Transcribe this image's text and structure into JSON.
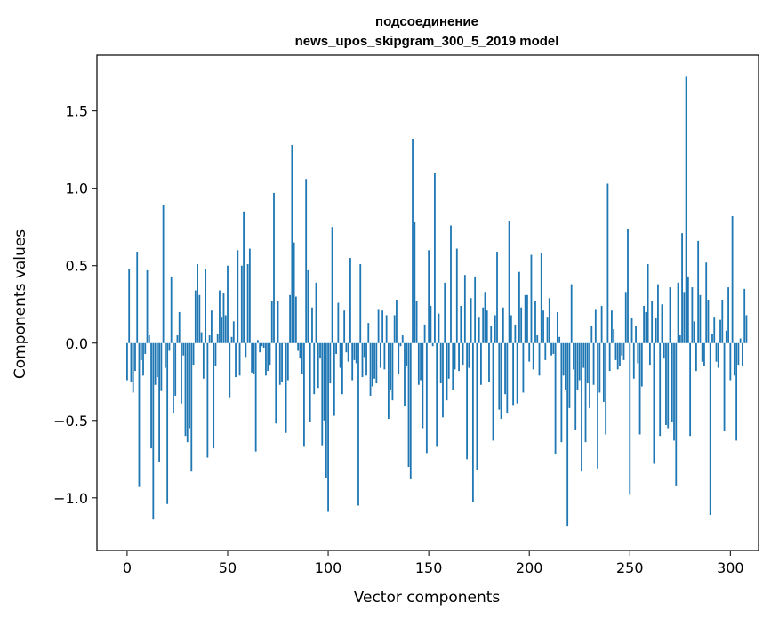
{
  "chart_data": {
    "type": "bar",
    "title_lines": [
      "подсоединение",
      "news_upos_skipgram_300_5_2019 model"
    ],
    "xlabel": "Vector components",
    "ylabel": "Components values",
    "xlim": [
      -15,
      314
    ],
    "ylim": [
      -1.34,
      1.86
    ],
    "xticks": [
      0,
      50,
      100,
      150,
      200,
      250,
      300
    ],
    "yticks": [
      -1.0,
      -0.5,
      0.0,
      0.5,
      1.0,
      1.5
    ],
    "ytick_labels": [
      "−1.0",
      "−0.5",
      "0.0",
      "0.5",
      "1.0",
      "1.5"
    ],
    "grid": false,
    "bar_color": "#1f77b4",
    "values": [
      -0.24,
      0.48,
      -0.25,
      -0.32,
      -0.18,
      0.59,
      -0.93,
      -0.11,
      -0.21,
      -0.07,
      0.47,
      0.05,
      -0.68,
      -1.14,
      -0.27,
      -0.22,
      -0.77,
      -0.31,
      0.89,
      -0.16,
      -1.04,
      -0.05,
      0.43,
      -0.45,
      -0.34,
      0.05,
      0.2,
      -0.39,
      -0.08,
      -0.6,
      -0.64,
      -0.55,
      -0.83,
      -0.14,
      0.34,
      0.51,
      0.31,
      0.07,
      -0.23,
      0.48,
      -0.74,
      0.05,
      0.21,
      -0.68,
      -0.15,
      0.06,
      0.34,
      0.17,
      0.32,
      0.18,
      0.5,
      -0.35,
      0.04,
      0.14,
      -0.22,
      0.6,
      -0.21,
      0.5,
      0.85,
      -0.09,
      0.51,
      0.61,
      -0.19,
      -0.2,
      -0.7,
      0.02,
      -0.06,
      -0.02,
      -0.03,
      -0.21,
      -0.18,
      -0.14,
      0.27,
      0.97,
      -0.52,
      0.27,
      -0.27,
      -0.25,
      0.0,
      -0.58,
      -0.24,
      0.31,
      1.28,
      0.65,
      0.3,
      -0.05,
      -0.1,
      -0.2,
      -0.67,
      1.06,
      0.47,
      -0.51,
      0.23,
      -0.33,
      0.39,
      -0.29,
      -0.1,
      -0.66,
      -0.5,
      -0.87,
      -1.09,
      -0.26,
      0.75,
      -0.47,
      -0.07,
      0.26,
      -0.16,
      -0.33,
      0.21,
      -0.06,
      -0.12,
      0.55,
      -0.24,
      -0.11,
      -0.13,
      -1.05,
      0.51,
      -0.22,
      -0.09,
      -0.21,
      0.13,
      -0.34,
      -0.28,
      -0.23,
      -0.26,
      0.22,
      -0.16,
      0.21,
      -0.17,
      0.18,
      -0.49,
      -0.3,
      -0.37,
      0.18,
      0.28,
      -0.2,
      -0.02,
      0.05,
      -0.41,
      -0.15,
      -0.8,
      -0.88,
      1.32,
      0.78,
      0.27,
      -0.27,
      -0.24,
      -0.55,
      0.12,
      -0.71,
      0.6,
      0.24,
      -0.02,
      1.1,
      -0.67,
      0.19,
      -0.26,
      -0.48,
      0.39,
      -0.37,
      -0.23,
      0.76,
      -0.3,
      -0.17,
      0.61,
      -0.18,
      0.24,
      -0.14,
      0.44,
      -0.75,
      -0.16,
      0.29,
      -1.03,
      0.43,
      -0.82,
      0.17,
      -0.27,
      0.23,
      0.33,
      0.21,
      -0.25,
      0.11,
      -0.63,
      0.18,
      0.59,
      -0.43,
      -0.49,
      0.23,
      -0.33,
      -0.45,
      0.79,
      0.18,
      -0.4,
      0.12,
      -0.39,
      0.46,
      0.23,
      -0.32,
      0.31,
      0.31,
      -0.12,
      0.57,
      -0.17,
      0.27,
      0.05,
      -0.21,
      0.58,
      0.21,
      -0.11,
      0.17,
      0.29,
      -0.08,
      -0.07,
      -0.72,
      0.2,
      0.04,
      -0.64,
      -0.21,
      -0.3,
      -1.18,
      -0.42,
      0.38,
      -0.17,
      -0.56,
      -0.3,
      -0.24,
      -0.83,
      -0.16,
      -0.64,
      -0.26,
      -0.42,
      0.11,
      -0.27,
      0.22,
      -0.81,
      -0.32,
      0.24,
      -0.38,
      -0.59,
      1.03,
      -0.18,
      0.21,
      0.09,
      -0.11,
      -0.17,
      -0.15,
      -0.08,
      -0.11,
      0.33,
      0.74,
      -0.98,
      0.16,
      -0.23,
      0.11,
      -0.13,
      -0.59,
      -0.28,
      0.24,
      0.2,
      0.51,
      -0.14,
      0.27,
      -0.78,
      0.16,
      0.38,
      -0.6,
      0.25,
      -0.1,
      -0.53,
      -0.55,
      0.36,
      -0.51,
      -0.63,
      -0.92,
      0.39,
      0.05,
      0.71,
      0.33,
      1.72,
      0.43,
      -0.6,
      0.36,
      0.14,
      -0.18,
      0.66,
      0.31,
      -0.12,
      -0.15,
      0.52,
      0.28,
      -1.11,
      0.06,
      0.17,
      -0.12,
      -0.16,
      0.15,
      0.28,
      -0.57,
      0.08,
      0.36,
      -0.24,
      0.82,
      -0.21,
      -0.63,
      -0.14,
      0.03,
      -0.15,
      0.35,
      0.18
    ]
  }
}
